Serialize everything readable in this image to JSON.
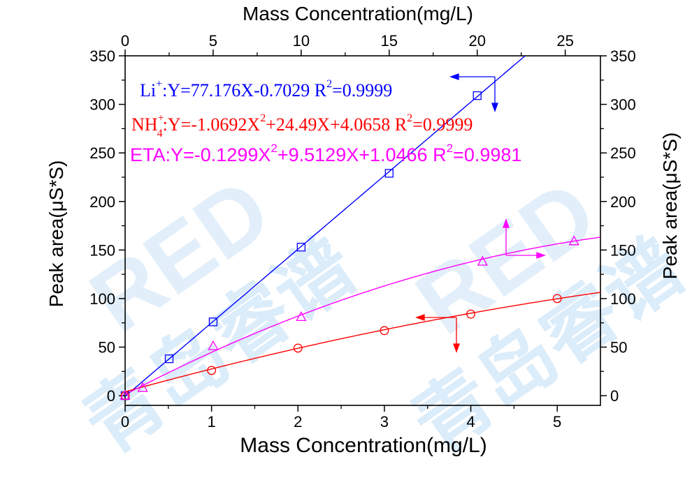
{
  "chart_data": {
    "type": "scatter",
    "xlabel_bottom": "Mass Concentration(mg/L)",
    "xlabel_top": "Mass Concentration(mg/L)",
    "ylabel_left": "Peak area(μS*S)",
    "ylabel_right": "Peak area(μS*S)",
    "bottom_axis": {
      "range": [
        0,
        5.5
      ],
      "ticks": [
        "0",
        "1",
        "2",
        "3",
        "4",
        "5"
      ]
    },
    "top_axis": {
      "range": [
        0,
        27
      ],
      "ticks": [
        "0",
        "5",
        "10",
        "15",
        "20",
        "25"
      ]
    },
    "y_axis": {
      "range": [
        -10,
        350
      ],
      "ticks": [
        "0",
        "50",
        "100",
        "150",
        "200",
        "250",
        "300",
        "350"
      ]
    },
    "grid": false,
    "watermark": "REDO 青岛睿谱",
    "series": [
      {
        "name": "Li+",
        "marker": "square",
        "color": "#0000ff",
        "x_axis": "top",
        "points": [
          [
            0,
            0
          ],
          [
            2.5,
            38
          ],
          [
            5,
            76
          ],
          [
            10,
            153
          ],
          [
            15,
            229
          ],
          [
            20,
            309
          ]
        ],
        "fit": {
          "type": "linear",
          "a": 77.176,
          "b": -0.7029,
          "x_scale": 0.2
        },
        "equation": {
          "prefix": "Li",
          "sup": "+",
          "body": ":Y=77.176X-0.7029  R",
          "r_sup": "2",
          "r_val": "=0.9999"
        }
      },
      {
        "name": "NH4+",
        "marker": "circle",
        "color": "#ff0000",
        "x_axis": "bottom",
        "points": [
          [
            0,
            0
          ],
          [
            1,
            26
          ],
          [
            2,
            49
          ],
          [
            3,
            67
          ],
          [
            4,
            84
          ],
          [
            5,
            100
          ]
        ],
        "fit": {
          "type": "quadratic",
          "a2": -1.0692,
          "a1": 24.49,
          "a0": 4.0658
        },
        "equation": {
          "prefix": "NH",
          "sub": "4",
          "sup": "+",
          "body": ":Y=-1.0692X",
          "x_sup": "2",
          "rest": "+24.49X+4.0658  R",
          "r_sup": "2",
          "r_val": "=0.9999"
        }
      },
      {
        "name": "ETA",
        "marker": "triangle",
        "color": "#ff00ff",
        "x_axis": "top",
        "points": [
          [
            0,
            0
          ],
          [
            1,
            8
          ],
          [
            5,
            51
          ],
          [
            10,
            81
          ],
          [
            20.3,
            138
          ],
          [
            25.5,
            159
          ]
        ],
        "fit": {
          "type": "quadratic",
          "a2": -0.1299,
          "a1": 9.5129,
          "a0": 1.0466
        },
        "equation": {
          "prefix": "ETA",
          "body": ":Y=-0.1299X",
          "x_sup": "2",
          "rest": "+9.5129X+1.0466  R",
          "r_sup": "2",
          "r_val": "=0.9981"
        }
      }
    ]
  }
}
